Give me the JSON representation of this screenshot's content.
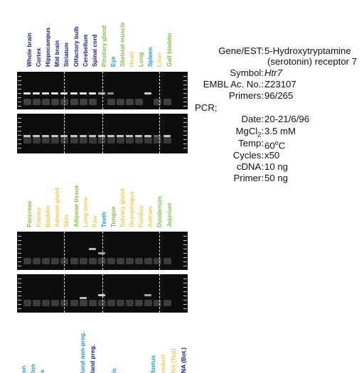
{
  "gel_1": {
    "lanes": [
      {
        "label": "Whole brain",
        "color": "#1a1a8c"
      },
      {
        "label": "Cortex",
        "color": "#1a1a8c"
      },
      {
        "label": "Hippocampus",
        "color": "#1a1a8c"
      },
      {
        "label": "Mid brain",
        "color": "#1a1a8c"
      },
      {
        "label": "Striatum",
        "color": "#1a1a8c"
      },
      {
        "label": "Olfactory bulb",
        "color": "#1a1a8c"
      },
      {
        "label": "Cerebellum",
        "color": "#1a1a8c"
      },
      {
        "label": "Spinal cord",
        "color": "#1a1a8c"
      },
      {
        "label": "Pituitary gland",
        "color": "#7cc242"
      },
      {
        "label": "Eye",
        "color": "#1a9ad6"
      },
      {
        "label": "Skeletal muscle",
        "color": "#7cc242"
      },
      {
        "label": "Heart",
        "color": "#f2c94c"
      },
      {
        "label": "Lung",
        "color": "#7cc242"
      },
      {
        "label": "Spleen",
        "color": "#1a9ad6"
      },
      {
        "label": "Liver",
        "color": "#f2c94c"
      },
      {
        "label": "Gall bladder",
        "color": "#7cc242"
      }
    ]
  },
  "gel_2": {
    "lanes": [
      {
        "label": "Pancreas",
        "color": "#7cc242"
      },
      {
        "label": "Kidney",
        "color": "#f2c94c"
      },
      {
        "label": "Bladder",
        "color": "#f2c94c"
      },
      {
        "label": "Adrenal gland",
        "color": "#f2c94c"
      },
      {
        "label": "Skin",
        "color": "#f2c94c"
      },
      {
        "label": "Adipose tissue",
        "color": "#7cc242"
      },
      {
        "label": "Long bone",
        "color": "#f2c94c"
      },
      {
        "label": "Paw",
        "color": "#f2c94c"
      },
      {
        "label": "Teeth",
        "color": "#1a9ad6"
      },
      {
        "label": "Tongue",
        "color": "#7cc242"
      },
      {
        "label": "Salvary gland",
        "color": "#f2c94c"
      },
      {
        "label": "Oesophagus",
        "color": "#f2c94c"
      },
      {
        "label": "Fundus",
        "color": "#f2c94c"
      },
      {
        "label": "Antrum",
        "color": "#f2c94c"
      },
      {
        "label": "Duodenum",
        "color": "#7cc242"
      },
      {
        "label": "Jejunum",
        "color": "#7cc242"
      }
    ]
  },
  "gel_3": {
    "lanes": [
      {
        "label": "on",
        "color": "#1a9ad6"
      },
      {
        "label": "lon",
        "color": "#1a9ad6"
      },
      {
        "label": "x",
        "color": "#1a9ad6"
      },
      {
        "label": "land non-preg.",
        "color": "#1a9ad6"
      },
      {
        "label": "land preg.",
        "color": "#1a1a8c"
      },
      {
        "label": "is",
        "color": "#1a9ad6"
      },
      {
        "label": "foetus",
        "color": "#1a9ad6"
      },
      {
        "label": "roduct",
        "color": "#f2c94c"
      },
      {
        "label": "NA (Top)",
        "color": "#f2c94c"
      },
      {
        "label": "NA (Bot.)",
        "color": "#1a1a8c"
      }
    ]
  },
  "info": {
    "gene_key": "Gene/EST:",
    "gene_line1": "5-Hydroxytryptamine",
    "gene_line2": "(serotonin) receptor 7",
    "symbol_key": "Symbol:",
    "symbol_val": "Htr7",
    "embl_key": "EMBL Ac. No.:",
    "embl_val": "Z23107",
    "primers_key": "Primers:",
    "primers_val": "96/265",
    "pcr_heading": "PCR;",
    "date_key": "Date:",
    "date_val": "20-21/6/96",
    "mgcl2_key_a": "MgCl",
    "mgcl2_key_sub": "2",
    "mgcl2_key_b": ":",
    "mgcl2_val": "3.5 mM",
    "temp_key": "Temp:",
    "temp_val_a": "60",
    "temp_val_sup": "o",
    "temp_val_b": "C",
    "cycles_key": "Cycles:",
    "cycles_val": "x50",
    "cdna_key": "cDNA:",
    "cdna_val": "10 ng",
    "primer_key": "Primer:",
    "primer_val": "50 ng"
  }
}
